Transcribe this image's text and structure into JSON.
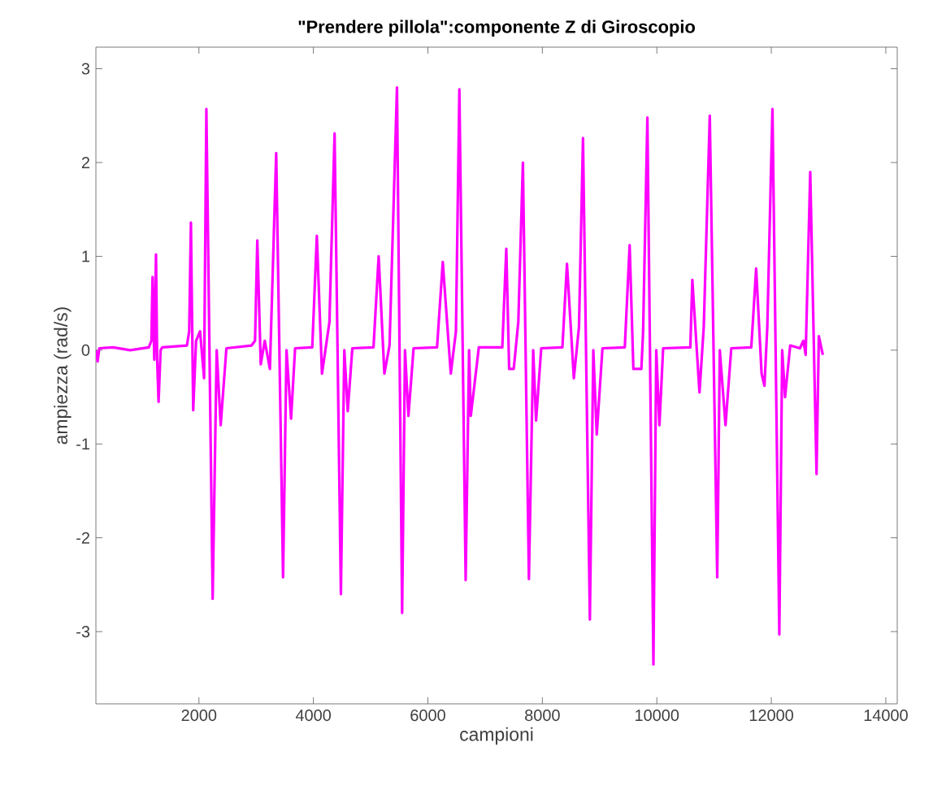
{
  "chart_data": {
    "type": "line",
    "title": "\"Prendere pillola\":componente Z di Giroscopio",
    "xlabel": "campioni",
    "ylabel": "ampiezza (rad/s)",
    "color": "#ff00ff",
    "xlim": [
      200,
      14200
    ],
    "ylim": [
      -3.77,
      3.23
    ],
    "xticks": [
      2000,
      4000,
      6000,
      8000,
      10000,
      12000,
      14000
    ],
    "yticks": [
      -3,
      -2,
      -1,
      0,
      1,
      2,
      3
    ],
    "x": [
      200,
      230,
      260,
      500,
      800,
      1125,
      1170,
      1190,
      1220,
      1250,
      1270,
      1295,
      1330,
      1360,
      1790,
      1830,
      1860,
      1900,
      1950,
      2020,
      2090,
      2130,
      2240,
      2310,
      2380,
      2480,
      2920,
      2980,
      3020,
      3080,
      3150,
      3240,
      3350,
      3470,
      3530,
      3610,
      3680,
      3980,
      4060,
      4150,
      4280,
      4370,
      4480,
      4540,
      4600,
      4680,
      5050,
      5140,
      5240,
      5330,
      5460,
      5550,
      5600,
      5660,
      5750,
      6160,
      6260,
      6400,
      6490,
      6550,
      6660,
      6720,
      6750,
      6890,
      7300,
      7370,
      7420,
      7500,
      7580,
      7660,
      7765,
      7840,
      7890,
      7980,
      8350,
      8430,
      8550,
      8640,
      8710,
      8830,
      8890,
      8950,
      9050,
      9440,
      9525,
      9590,
      9730,
      9760,
      9835,
      9940,
      9990,
      10045,
      10110,
      10585,
      10620,
      10745,
      10820,
      10925,
      11055,
      11100,
      11200,
      11300,
      11650,
      11735,
      11830,
      11880,
      11930,
      12020,
      12140,
      12190,
      12240,
      12330,
      12500,
      12560,
      12600,
      12680,
      12790,
      12830,
      12900
    ],
    "values": [
      0.0,
      -0.12,
      0.02,
      0.03,
      0.0,
      0.03,
      0.1,
      0.78,
      -0.1,
      1.02,
      -0.1,
      -0.55,
      0.0,
      0.03,
      0.05,
      0.2,
      1.36,
      -0.64,
      0.1,
      0.2,
      -0.3,
      2.57,
      -2.65,
      0.0,
      -0.8,
      0.02,
      0.05,
      0.1,
      1.17,
      -0.15,
      0.1,
      -0.2,
      2.1,
      -2.42,
      0.0,
      -0.73,
      0.02,
      0.03,
      1.22,
      -0.25,
      0.3,
      2.31,
      -2.6,
      0.0,
      -0.65,
      0.02,
      0.03,
      1.0,
      -0.25,
      0.05,
      2.8,
      -2.8,
      0.0,
      -0.7,
      0.02,
      0.03,
      0.94,
      -0.25,
      0.2,
      2.78,
      -2.45,
      0.0,
      -0.7,
      0.03,
      0.03,
      1.08,
      -0.2,
      -0.2,
      0.3,
      2.0,
      -2.44,
      0.0,
      -0.75,
      0.02,
      0.03,
      0.92,
      -0.3,
      0.25,
      2.26,
      -2.87,
      0.0,
      -0.9,
      0.02,
      0.03,
      1.12,
      -0.2,
      -0.2,
      0.2,
      2.48,
      -3.35,
      0.0,
      -0.8,
      0.02,
      0.03,
      0.75,
      -0.45,
      0.25,
      2.5,
      -2.42,
      0.0,
      -0.8,
      0.02,
      0.03,
      0.87,
      -0.25,
      -0.38,
      0.25,
      2.57,
      -3.03,
      0.0,
      -0.5,
      0.05,
      0.02,
      0.1,
      -0.05,
      1.9,
      -1.32,
      0.15,
      -0.05
    ]
  }
}
